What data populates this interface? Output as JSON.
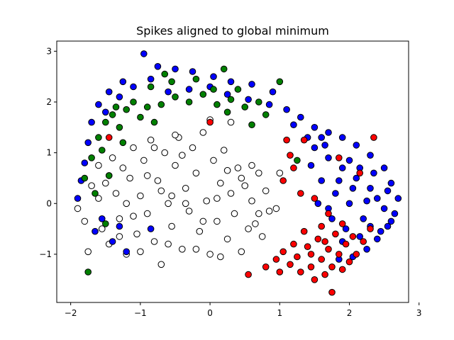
{
  "chart_data": {
    "type": "scatter",
    "title": "Spikes aligned to global minimum",
    "xlabel": "",
    "ylabel": "",
    "xlim": [
      -2.2,
      2.85
    ],
    "ylim": [
      -1.95,
      3.2
    ],
    "xticks": [
      -2,
      -1,
      0,
      1,
      2,
      3
    ],
    "yticks": [
      -1,
      0,
      1,
      2,
      3
    ],
    "grid": false,
    "legend": "none",
    "marker": "circle",
    "series": [
      {
        "color": "#ffffff",
        "points": [
          [
            -1.9,
            -0.1
          ],
          [
            -1.8,
            -0.35
          ],
          [
            -1.75,
            -0.95
          ],
          [
            -1.6,
            0.1
          ],
          [
            -1.55,
            -0.5
          ],
          [
            -1.5,
            0.4
          ],
          [
            -1.45,
            -0.8
          ],
          [
            -1.4,
            0.9
          ],
          [
            -1.35,
            0.2
          ],
          [
            -1.3,
            -0.3
          ],
          [
            -1.25,
            0.7
          ],
          [
            -1.2,
            -1.0
          ],
          [
            -1.15,
            0.5
          ],
          [
            -1.1,
            1.1
          ],
          [
            -1.05,
            -0.6
          ],
          [
            -1.0,
            0.15
          ],
          [
            -0.95,
            0.85
          ],
          [
            -0.9,
            -0.2
          ],
          [
            -0.85,
            1.25
          ],
          [
            -0.8,
            -0.75
          ],
          [
            -0.75,
            0.45
          ],
          [
            -0.7,
            -1.2
          ],
          [
            -0.65,
            1.0
          ],
          [
            -0.6,
            0.0
          ],
          [
            -0.55,
            -0.45
          ],
          [
            -0.5,
            0.75
          ],
          [
            -0.45,
            1.3
          ],
          [
            -0.4,
            -0.9
          ],
          [
            -0.35,
            0.3
          ],
          [
            -0.3,
            -0.15
          ],
          [
            -0.25,
            1.1
          ],
          [
            -0.2,
            0.6
          ],
          [
            -0.15,
            -0.55
          ],
          [
            -0.1,
            1.4
          ],
          [
            -0.05,
            0.05
          ],
          [
            0.0,
            -1.0
          ],
          [
            0.05,
            0.85
          ],
          [
            0.1,
            -0.35
          ],
          [
            0.15,
            0.4
          ],
          [
            0.2,
            1.05
          ],
          [
            0.25,
            -0.7
          ],
          [
            0.3,
            0.2
          ],
          [
            0.35,
            -0.2
          ],
          [
            0.4,
            0.7
          ],
          [
            0.45,
            -0.95
          ],
          [
            0.5,
            0.35
          ],
          [
            0.55,
            -0.5
          ],
          [
            0.6,
            0.05
          ],
          [
            0.65,
            -0.4
          ],
          [
            0.7,
            0.6
          ],
          [
            0.75,
            -0.65
          ],
          [
            0.8,
            0.25
          ],
          [
            0.85,
            -0.15
          ],
          [
            0.95,
            -0.1
          ],
          [
            1.0,
            0.6
          ],
          [
            0.3,
            1.6
          ],
          [
            0.0,
            1.65
          ],
          [
            -0.5,
            1.35
          ],
          [
            -1.6,
            0.75
          ],
          [
            -1.7,
            0.35
          ],
          [
            -1.1,
            -0.25
          ],
          [
            -0.4,
            0.95
          ],
          [
            0.1,
            0.1
          ],
          [
            -0.9,
            0.55
          ],
          [
            -0.2,
            -0.9
          ],
          [
            0.6,
            0.75
          ],
          [
            -1.3,
            -0.65
          ],
          [
            0.15,
            -1.05
          ],
          [
            -0.7,
            0.25
          ],
          [
            -1.45,
            0.55
          ],
          [
            -0.6,
            -0.8
          ],
          [
            0.45,
            0.5
          ],
          [
            -0.35,
            0.0
          ],
          [
            -1.0,
            -0.95
          ],
          [
            0.25,
            0.65
          ],
          [
            -0.8,
            1.1
          ],
          [
            -1.2,
            0.0
          ],
          [
            0.7,
            -0.2
          ],
          [
            -0.1,
            -0.35
          ],
          [
            -0.55,
            0.15
          ]
        ]
      },
      {
        "color": "#0000ff",
        "points": [
          [
            -0.95,
            2.95
          ],
          [
            -0.75,
            2.7
          ],
          [
            -0.5,
            2.65
          ],
          [
            -0.25,
            2.6
          ],
          [
            0.05,
            2.5
          ],
          [
            0.3,
            2.4
          ],
          [
            0.6,
            2.35
          ],
          [
            0.9,
            2.2
          ],
          [
            -1.25,
            2.4
          ],
          [
            -1.45,
            2.2
          ],
          [
            -1.6,
            1.95
          ],
          [
            -1.7,
            1.6
          ],
          [
            -1.75,
            1.2
          ],
          [
            -1.8,
            0.8
          ],
          [
            -1.85,
            0.45
          ],
          [
            -1.9,
            0.1
          ],
          [
            -1.5,
            1.8
          ],
          [
            -1.3,
            2.1
          ],
          [
            -1.1,
            2.3
          ],
          [
            -0.85,
            2.45
          ],
          [
            -0.6,
            2.2
          ],
          [
            -0.3,
            2.25
          ],
          [
            0.0,
            2.3
          ],
          [
            0.25,
            2.15
          ],
          [
            0.55,
            2.05
          ],
          [
            0.85,
            1.95
          ],
          [
            1.1,
            1.85
          ],
          [
            1.3,
            1.7
          ],
          [
            1.5,
            1.5
          ],
          [
            1.7,
            1.4
          ],
          [
            1.9,
            1.3
          ],
          [
            2.1,
            1.15
          ],
          [
            2.3,
            0.95
          ],
          [
            2.5,
            0.7
          ],
          [
            2.6,
            0.4
          ],
          [
            2.7,
            0.1
          ],
          [
            2.65,
            -0.2
          ],
          [
            2.55,
            -0.45
          ],
          [
            2.4,
            -0.7
          ],
          [
            2.25,
            -0.9
          ],
          [
            2.05,
            -1.05
          ],
          [
            1.85,
            -1.1
          ],
          [
            1.5,
            1.1
          ],
          [
            1.7,
            0.9
          ],
          [
            1.9,
            0.7
          ],
          [
            2.1,
            0.5
          ],
          [
            2.3,
            0.3
          ],
          [
            2.0,
            0.0
          ],
          [
            1.8,
            0.2
          ],
          [
            1.6,
            0.45
          ],
          [
            2.2,
            -0.3
          ],
          [
            2.4,
            0.1
          ],
          [
            1.95,
            -0.5
          ],
          [
            2.15,
            -0.65
          ],
          [
            1.75,
            -0.3
          ],
          [
            1.55,
            0.0
          ],
          [
            2.5,
            -0.1
          ],
          [
            2.35,
            0.6
          ],
          [
            2.0,
            0.85
          ],
          [
            1.65,
            1.15
          ],
          [
            1.4,
            1.3
          ],
          [
            1.2,
            1.55
          ],
          [
            -1.3,
            -0.45
          ],
          [
            -1.2,
            -0.95
          ],
          [
            -1.4,
            -0.75
          ],
          [
            -1.55,
            -0.3
          ],
          [
            -1.65,
            -0.55
          ],
          [
            -0.85,
            -0.5
          ],
          [
            2.45,
            -0.55
          ],
          [
            2.6,
            -0.35
          ],
          [
            1.85,
            0.45
          ],
          [
            2.25,
            0.05
          ],
          [
            2.05,
            0.3
          ],
          [
            1.7,
            -0.1
          ],
          [
            2.3,
            -0.45
          ],
          [
            2.55,
            0.25
          ],
          [
            1.9,
            -0.75
          ],
          [
            2.15,
            0.7
          ],
          [
            1.45,
            0.75
          ],
          [
            1.6,
            1.3
          ]
        ]
      },
      {
        "color": "#008000",
        "points": [
          [
            -1.8,
            0.5
          ],
          [
            -1.75,
            -1.35
          ],
          [
            -1.7,
            0.9
          ],
          [
            -1.6,
            1.3
          ],
          [
            -1.5,
            1.6
          ],
          [
            -1.4,
            1.75
          ],
          [
            -1.3,
            1.5
          ],
          [
            -1.2,
            1.85
          ],
          [
            -1.1,
            2.0
          ],
          [
            -0.9,
            1.9
          ],
          [
            -0.7,
            1.95
          ],
          [
            -0.5,
            2.1
          ],
          [
            -0.3,
            2.0
          ],
          [
            -0.1,
            2.15
          ],
          [
            0.1,
            1.95
          ],
          [
            0.3,
            2.05
          ],
          [
            0.5,
            1.9
          ],
          [
            0.7,
            2.0
          ],
          [
            -0.85,
            2.3
          ],
          [
            -0.55,
            2.4
          ],
          [
            -0.2,
            2.45
          ],
          [
            0.2,
            2.65
          ],
          [
            -1.55,
            1.05
          ],
          [
            -1.45,
            0.55
          ],
          [
            -1.35,
            1.9
          ],
          [
            -1.0,
            1.7
          ],
          [
            -0.8,
            1.6
          ],
          [
            0.05,
            2.25
          ],
          [
            0.4,
            2.25
          ],
          [
            0.6,
            1.55
          ],
          [
            0.8,
            1.75
          ],
          [
            1.0,
            2.4
          ],
          [
            1.25,
            0.85
          ],
          [
            -1.65,
            0.2
          ],
          [
            -1.5,
            -0.4
          ],
          [
            -1.25,
            1.2
          ],
          [
            -0.65,
            2.55
          ],
          [
            0.25,
            1.8
          ]
        ]
      },
      {
        "color": "#ff0000",
        "points": [
          [
            -1.45,
            1.3
          ],
          [
            0.0,
            1.6
          ],
          [
            0.55,
            -1.4
          ],
          [
            0.8,
            -1.25
          ],
          [
            0.95,
            -1.1
          ],
          [
            1.05,
            -0.95
          ],
          [
            1.15,
            -1.2
          ],
          [
            1.25,
            -1.05
          ],
          [
            1.3,
            -1.35
          ],
          [
            1.4,
            -0.85
          ],
          [
            1.45,
            -1.25
          ],
          [
            1.5,
            -1.5
          ],
          [
            1.55,
            -0.7
          ],
          [
            1.6,
            -1.1
          ],
          [
            1.65,
            -1.4
          ],
          [
            1.7,
            -0.9
          ],
          [
            1.75,
            -1.25
          ],
          [
            1.8,
            -0.6
          ],
          [
            1.85,
            -1.0
          ],
          [
            1.9,
            -1.3
          ],
          [
            1.95,
            -0.8
          ],
          [
            2.0,
            -1.15
          ],
          [
            2.05,
            -0.65
          ],
          [
            2.1,
            -1.0
          ],
          [
            2.2,
            -0.75
          ],
          [
            2.3,
            -0.5
          ],
          [
            1.2,
            -0.8
          ],
          [
            1.35,
            -0.55
          ],
          [
            1.6,
            -0.45
          ],
          [
            1.7,
            -0.2
          ],
          [
            1.5,
            0.1
          ],
          [
            1.3,
            0.2
          ],
          [
            1.2,
            0.7
          ],
          [
            1.15,
            0.95
          ],
          [
            1.1,
            1.25
          ],
          [
            1.35,
            1.25
          ],
          [
            1.05,
            0.45
          ],
          [
            1.75,
            -1.75
          ],
          [
            1.0,
            -1.35
          ],
          [
            1.45,
            -1.0
          ],
          [
            1.65,
            -0.75
          ],
          [
            1.9,
            -0.4
          ],
          [
            2.35,
            1.3
          ],
          [
            2.15,
            0.6
          ],
          [
            1.85,
            0.9
          ]
        ]
      }
    ]
  }
}
